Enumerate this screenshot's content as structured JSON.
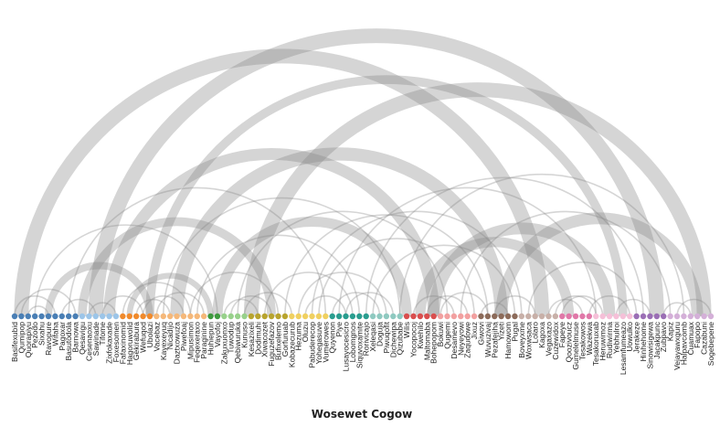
{
  "title": "Wosewet Cogow",
  "colors": {
    "edge": "#888888",
    "group": [
      "#4a7fb5",
      "#9cc5e8",
      "#f08a2c",
      "#f5b87a",
      "#3e9a3e",
      "#98d18b",
      "#b8a42e",
      "#f0d060",
      "#2a9d8f",
      "#8fc9c0",
      "#d94e4e",
      "#f2a0a0",
      "#8c6b5a",
      "#c8b0a8",
      "#e078a8",
      "#f5c0d8",
      "#9b6fb5",
      "#d4b0d8"
    ]
  },
  "nodes": [
    {
      "label": "Basifexubid",
      "group": 0
    },
    {
      "label": "Qumipop",
      "group": 0
    },
    {
      "label": "Quorapiyu",
      "group": 0
    },
    {
      "label": "Pezodo",
      "group": 0
    },
    {
      "label": "Sixahu",
      "group": 0
    },
    {
      "label": "Ravopure",
      "group": 0
    },
    {
      "label": "Wifaha",
      "group": 0
    },
    {
      "label": "Pagoxar",
      "group": 0
    },
    {
      "label": "Basutodola",
      "group": 0
    },
    {
      "label": "Barnowa",
      "group": 0
    },
    {
      "label": "Qesavigu",
      "group": 1
    },
    {
      "label": "Cesenaoxu",
      "group": 1
    },
    {
      "label": "Sawinade",
      "group": 1
    },
    {
      "label": "Tifome",
      "group": 1
    },
    {
      "label": "Zixfokaxade",
      "group": 1
    },
    {
      "label": "Foxesomen",
      "group": 1
    },
    {
      "label": "Fafaxinomid",
      "group": 2
    },
    {
      "label": "Hagoruwolid",
      "group": 2
    },
    {
      "label": "Gekirabura",
      "group": 2
    },
    {
      "label": "Wefuqod",
      "group": 2
    },
    {
      "label": "Ubolazi",
      "group": 2
    },
    {
      "label": "Vacebaz",
      "group": 3
    },
    {
      "label": "Kayexeyuq",
      "group": 3
    },
    {
      "label": "Nicadijo",
      "group": 3
    },
    {
      "label": "Daztxowuza",
      "group": 3
    },
    {
      "label": "Piwefoaj",
      "group": 3
    },
    {
      "label": "Mipusimon",
      "group": 3
    },
    {
      "label": "Feqexeraxo",
      "group": 3
    },
    {
      "label": "Paraginine",
      "group": 3
    },
    {
      "label": "Huhiepun",
      "group": 4
    },
    {
      "label": "Vayofoj",
      "group": 4
    },
    {
      "label": "Zakuxuonxo",
      "group": 5
    },
    {
      "label": "Tuwodup",
      "group": 5
    },
    {
      "label": "Qebiwuruka",
      "group": 5
    },
    {
      "label": "Kunuso",
      "group": 5
    },
    {
      "label": "Kesazixeli",
      "group": 6
    },
    {
      "label": "Dodimuhi",
      "group": 6
    },
    {
      "label": "Xiwacozet",
      "group": 6
    },
    {
      "label": "Fuguzefazov",
      "group": 6
    },
    {
      "label": "Bufixelemo",
      "group": 6
    },
    {
      "label": "Gorfuruab",
      "group": 6
    },
    {
      "label": "Kobazecurub",
      "group": 7
    },
    {
      "label": "Hezuma",
      "group": 7
    },
    {
      "label": "Oluzu",
      "group": 7
    },
    {
      "label": "Pabuderecop",
      "group": 7
    },
    {
      "label": "Yohegasuve",
      "group": 7
    },
    {
      "label": "Vumerowes",
      "group": 7
    },
    {
      "label": "Quyenon",
      "group": 8
    },
    {
      "label": "Piye",
      "group": 8
    },
    {
      "label": "Lusayocesicro",
      "group": 8
    },
    {
      "label": "Lobomgnos",
      "group": 8
    },
    {
      "label": "Siquvoxamite",
      "group": 8
    },
    {
      "label": "Rorivicajo",
      "group": 8
    },
    {
      "label": "Xeleqasi",
      "group": 9
    },
    {
      "label": "Doguja",
      "group": 9
    },
    {
      "label": "Piwuqofit",
      "group": 9
    },
    {
      "label": "Dichewipa",
      "group": 9
    },
    {
      "label": "Qizubabe",
      "group": 9
    },
    {
      "label": "Wilis",
      "group": 10
    },
    {
      "label": "Yocopocoj",
      "group": 10
    },
    {
      "label": "Kwehilo",
      "group": 10
    },
    {
      "label": "Maltomaba",
      "group": 10
    },
    {
      "label": "Bohepopom",
      "group": 10
    },
    {
      "label": "Bokuwi",
      "group": 11
    },
    {
      "label": "Qugemi",
      "group": 11
    },
    {
      "label": "Desamevo",
      "group": 11
    },
    {
      "label": "Neyeyowi",
      "group": 11
    },
    {
      "label": "Zaqudowe",
      "group": 11
    },
    {
      "label": "Jixuz",
      "group": 11
    },
    {
      "label": "Giwovi",
      "group": 12
    },
    {
      "label": "Wuvuzivaj",
      "group": 12
    },
    {
      "label": "Pezafejiha",
      "group": 12
    },
    {
      "label": "Yizeti",
      "group": 12
    },
    {
      "label": "Hamowom",
      "group": 12
    },
    {
      "label": "Pugal",
      "group": 12
    },
    {
      "label": "Boveyxme",
      "group": 13
    },
    {
      "label": "Woxwsaca",
      "group": 13
    },
    {
      "label": "Lolaro",
      "group": 13
    },
    {
      "label": "Kagoxa",
      "group": 13
    },
    {
      "label": "Vegaxazo",
      "group": 13
    },
    {
      "label": "Cuzewidox",
      "group": 13
    },
    {
      "label": "Fapeye",
      "group": 14
    },
    {
      "label": "Qoozivoucz",
      "group": 14
    },
    {
      "label": "Gumelelmuse",
      "group": 14
    },
    {
      "label": "Tesakowos",
      "group": 14
    },
    {
      "label": "Wazekwa",
      "group": 14
    },
    {
      "label": "Tesakoruxab",
      "group": 15
    },
    {
      "label": "Heruwimoz",
      "group": 15
    },
    {
      "label": "Rudiwirma",
      "group": 15
    },
    {
      "label": "Yebhulroi",
      "group": 15
    },
    {
      "label": "Lesamfumeazo",
      "group": 15
    },
    {
      "label": "Uowulko",
      "group": 15
    },
    {
      "label": "Jerakeze",
      "group": 16
    },
    {
      "label": "Hinhehome",
      "group": 16
    },
    {
      "label": "Sinowisigewa",
      "group": 16
    },
    {
      "label": "Jacakpunc",
      "group": 16
    },
    {
      "label": "Zubpavo",
      "group": 16
    },
    {
      "label": "Kapiz",
      "group": 17
    },
    {
      "label": "Vejayawxguru",
      "group": 17
    },
    {
      "label": "Halpavcomb",
      "group": 17
    },
    {
      "label": "Cuamuax",
      "group": 17
    },
    {
      "label": "Fapopo",
      "group": 17
    },
    {
      "label": "Cazabuni",
      "group": 17
    },
    {
      "label": "Sogebepene",
      "group": 17
    }
  ],
  "links": [
    {
      "source": 1,
      "target": 78,
      "value": 10
    },
    {
      "source": 12,
      "target": 95,
      "value": 10
    },
    {
      "source": 14,
      "target": 62,
      "value": 8
    },
    {
      "source": 20,
      "target": 90,
      "value": 6
    },
    {
      "source": 24,
      "target": 72,
      "value": 9
    },
    {
      "source": 35,
      "target": 102,
      "value": 10
    },
    {
      "source": 30,
      "target": 58,
      "value": 7
    },
    {
      "source": 62,
      "target": 88,
      "value": 8
    },
    {
      "source": 72,
      "target": 101,
      "value": 8
    },
    {
      "source": 60,
      "target": 82,
      "value": 7
    },
    {
      "source": 10,
      "target": 38,
      "value": 6
    },
    {
      "source": 5,
      "target": 20,
      "value": 5
    },
    {
      "source": 17,
      "target": 29,
      "value": 4
    },
    {
      "source": 22,
      "target": 57,
      "value": 1
    },
    {
      "source": 27,
      "target": 51,
      "value": 1
    },
    {
      "source": 40,
      "target": 70,
      "value": 1
    },
    {
      "source": 44,
      "target": 75,
      "value": 1
    },
    {
      "source": 48,
      "target": 86,
      "value": 1
    },
    {
      "source": 52,
      "target": 93,
      "value": 1
    },
    {
      "source": 57,
      "target": 99,
      "value": 1
    },
    {
      "source": 3,
      "target": 30,
      "value": 1
    },
    {
      "source": 8,
      "target": 46,
      "value": 1
    },
    {
      "source": 33,
      "target": 64,
      "value": 1
    },
    {
      "source": 66,
      "target": 97,
      "value": 1
    },
    {
      "source": 37,
      "target": 50,
      "value": 1
    },
    {
      "source": 42,
      "target": 55,
      "value": 1
    },
    {
      "source": 45,
      "target": 68,
      "value": 1
    },
    {
      "source": 53,
      "target": 74,
      "value": 1
    },
    {
      "source": 76,
      "target": 92,
      "value": 1
    },
    {
      "source": 16,
      "target": 26,
      "value": 1
    },
    {
      "source": 26,
      "target": 39,
      "value": 1
    },
    {
      "source": 0,
      "target": 6,
      "value": 1
    },
    {
      "source": 1,
      "target": 9,
      "value": 1
    },
    {
      "source": 2,
      "target": 5,
      "value": 1
    },
    {
      "source": 11,
      "target": 15,
      "value": 1
    },
    {
      "source": 13,
      "target": 19,
      "value": 1
    },
    {
      "source": 18,
      "target": 23,
      "value": 1
    },
    {
      "source": 21,
      "target": 28,
      "value": 1
    },
    {
      "source": 31,
      "target": 36,
      "value": 1
    },
    {
      "source": 34,
      "target": 41,
      "value": 1
    },
    {
      "source": 47,
      "target": 54,
      "value": 1
    },
    {
      "source": 49,
      "target": 56,
      "value": 1
    },
    {
      "source": 59,
      "target": 65,
      "value": 1
    },
    {
      "source": 61,
      "target": 67,
      "value": 1
    },
    {
      "source": 69,
      "target": 73,
      "value": 1
    },
    {
      "source": 71,
      "target": 77,
      "value": 1
    },
    {
      "source": 79,
      "target": 84,
      "value": 1
    },
    {
      "source": 81,
      "target": 87,
      "value": 1
    },
    {
      "source": 85,
      "target": 91,
      "value": 1
    },
    {
      "source": 89,
      "target": 94,
      "value": 1
    },
    {
      "source": 96,
      "target": 100,
      "value": 1
    },
    {
      "source": 98,
      "target": 103,
      "value": 1
    },
    {
      "source": 7,
      "target": 12,
      "value": 1
    },
    {
      "source": 19,
      "target": 25,
      "value": 1
    },
    {
      "source": 32,
      "target": 38,
      "value": 1
    },
    {
      "source": 43,
      "target": 49,
      "value": 1
    },
    {
      "source": 63,
      "target": 70,
      "value": 1
    },
    {
      "source": 80,
      "target": 86,
      "value": 1
    }
  ]
}
